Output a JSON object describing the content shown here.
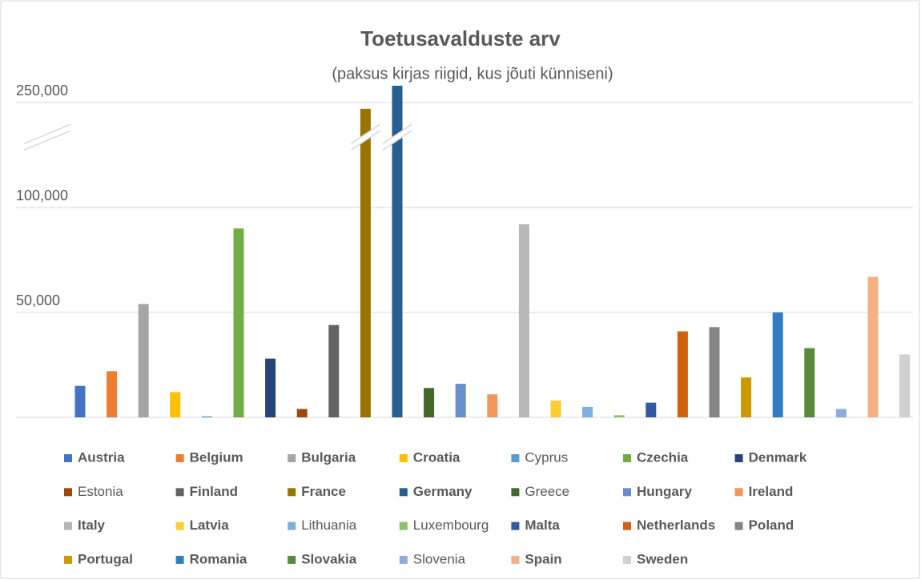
{
  "chart_data": {
    "type": "bar",
    "title": "Toetusavalduste arv",
    "subtitle": "(paksus kirjas riigid, kus jõuti künniseni)",
    "categories": [
      "Austria",
      "Belgium",
      "Bulgaria",
      "Croatia",
      "Cyprus",
      "Czechia",
      "Denmark",
      "Estonia",
      "Finland",
      "France",
      "Germany",
      "Greece",
      "Hungary",
      "Ireland",
      "Italy",
      "Latvia",
      "Lithuania",
      "Luxembourg",
      "Malta",
      "Netherlands",
      "Poland",
      "Portugal",
      "Romania",
      "Slovakia",
      "Slovenia",
      "Spain",
      "Sweden"
    ],
    "values": [
      15000,
      22000,
      54000,
      12000,
      500,
      90000,
      28000,
      4000,
      44000,
      247000,
      258000,
      14000,
      16000,
      11000,
      92000,
      8000,
      5000,
      1000,
      7000,
      41000,
      43000,
      19000,
      50000,
      33000,
      4000,
      67000,
      30000
    ],
    "colors": [
      "#4472c4",
      "#ed7d31",
      "#a5a5a5",
      "#ffc000",
      "#5b9bd5",
      "#70ad47",
      "#264478",
      "#9e480e",
      "#636363",
      "#997300",
      "#255e91",
      "#43682b",
      "#698ed0",
      "#f1975a",
      "#b7b7b7",
      "#ffcd33",
      "#7cafdd",
      "#8cc168",
      "#335aa1",
      "#d26012",
      "#848484",
      "#cc9a00",
      "#327dc2",
      "#5a8a39",
      "#8faadc",
      "#f4b183",
      "#d0d0d0"
    ],
    "bold": [
      true,
      true,
      true,
      true,
      false,
      true,
      true,
      false,
      true,
      true,
      true,
      false,
      true,
      true,
      true,
      true,
      false,
      false,
      true,
      true,
      true,
      true,
      true,
      true,
      false,
      true,
      true
    ],
    "ylim": [
      0,
      260000
    ],
    "axis_break": [
      135000,
      235000
    ],
    "yticks": [
      {
        "value": 50000,
        "label": "50,000"
      },
      {
        "value": 100000,
        "label": "100,000"
      },
      {
        "value": 250000,
        "label": "250,000"
      }
    ],
    "grid": true
  }
}
